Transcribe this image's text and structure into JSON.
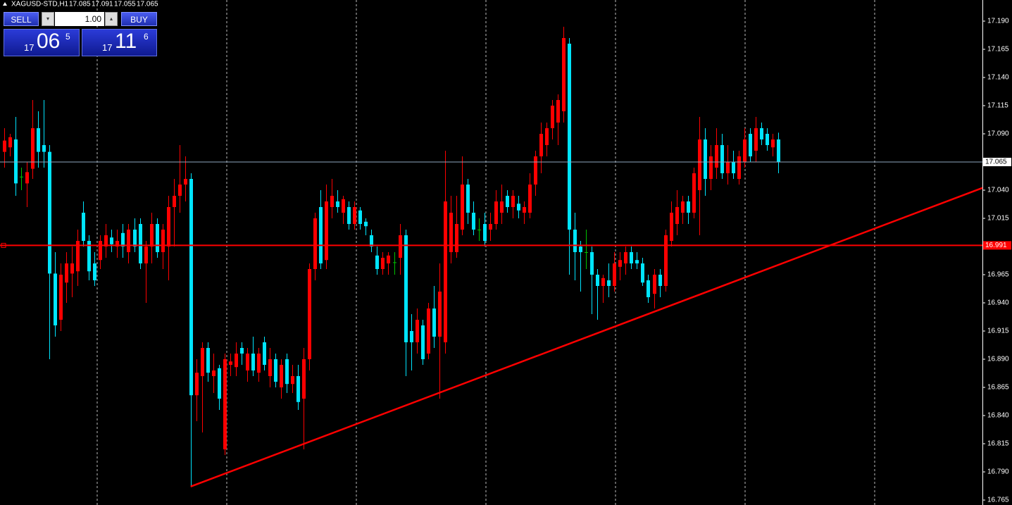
{
  "chart_data": {
    "type": "candlestick",
    "symbol": "XAGUSD-STD,H1",
    "open": [
      17.074,
      17.078,
      17.085,
      17.052,
      17.046,
      17.059,
      17.095,
      17.08,
      17.074,
      16.966,
      16.925,
      16.958,
      16.966,
      16.968,
      17.02,
      16.995,
      16.975,
      16.978,
      16.99,
      16.998,
      16.99,
      17.002,
      16.985,
      17.005,
      17.01,
      16.975,
      16.99,
      17.01,
      16.985,
      16.99,
      17.025,
      17.035,
      17.045,
      17.05,
      16.858,
      16.875,
      16.9,
      16.875,
      16.882,
      16.81,
      16.885,
      16.883,
      16.9,
      16.88,
      16.895,
      16.878,
      16.905,
      16.875,
      16.89,
      16.865,
      16.89,
      16.868,
      16.875,
      16.855,
      16.89,
      16.97,
      17.025,
      16.978,
      17.025,
      17.03,
      17.02,
      17.025,
      17.01,
      17.022,
      17.012,
      17.0,
      16.982,
      16.97,
      16.975,
      16.976,
      16.98,
      17.0,
      16.915,
      16.905,
      16.92,
      16.895,
      16.935,
      16.91,
      16.905,
      16.985,
      16.985,
      17.005,
      17.045,
      17.02,
      17.005,
      17.01,
      17.005,
      17.01,
      17.02,
      17.035,
      17.025,
      17.028,
      17.02,
      17.02,
      17.045,
      17.07,
      17.08,
      17.095,
      17.1,
      17.11,
      17.17,
      17.005,
      16.99,
      16.985,
      16.985,
      16.965,
      16.955,
      16.96,
      16.955,
      16.972,
      16.975,
      16.985,
      16.978,
      16.975,
      16.96,
      16.948,
      16.965,
      16.955,
      16.995,
      17.01,
      17.02,
      17.03,
      17.02,
      17.04,
      17.085,
      17.05,
      17.06,
      17.08,
      17.055,
      17.065,
      17.05,
      17.065,
      17.09,
      17.075,
      17.095,
      17.09,
      17.078,
      17.085
    ],
    "high": [
      17.095,
      17.09,
      17.105,
      17.06,
      17.065,
      17.12,
      17.11,
      17.12,
      17.08,
      16.985,
      16.975,
      16.985,
      16.99,
      17.005,
      17.03,
      17.0,
      16.985,
      17.0,
      17.01,
      17.005,
      17.005,
      17.01,
      17.01,
      17.015,
      17.015,
      16.995,
      17.02,
      17.015,
      17.01,
      17.035,
      17.05,
      17.08,
      17.07,
      17.055,
      16.89,
      16.905,
      16.905,
      16.895,
      16.885,
      16.895,
      16.895,
      16.905,
      16.905,
      16.9,
      16.91,
      16.9,
      16.91,
      16.9,
      16.895,
      16.89,
      16.895,
      16.885,
      16.885,
      16.9,
      16.975,
      17.02,
      17.04,
      17.045,
      17.05,
      17.04,
      17.035,
      17.03,
      17.03,
      17.025,
      17.015,
      17.005,
      16.99,
      16.985,
      16.985,
      16.985,
      17.01,
      17.005,
      16.93,
      16.935,
      16.925,
      16.94,
      16.955,
      16.975,
      17.075,
      17.035,
      17.035,
      17.07,
      17.05,
      17.03,
      17.015,
      17.02,
      17.02,
      17.04,
      17.045,
      17.04,
      17.04,
      17.035,
      17.03,
      17.055,
      17.075,
      17.1,
      17.1,
      17.12,
      17.125,
      17.185,
      17.175,
      17.02,
      16.995,
      17.005,
      16.99,
      16.97,
      16.965,
      16.975,
      16.985,
      16.985,
      16.99,
      16.99,
      16.985,
      16.98,
      16.965,
      16.97,
      16.97,
      17.005,
      17.03,
      17.04,
      17.035,
      17.035,
      17.06,
      17.105,
      17.095,
      17.08,
      17.095,
      17.09,
      17.08,
      17.075,
      17.075,
      17.095,
      17.095,
      17.105,
      17.1,
      17.095,
      17.09,
      17.091
    ],
    "low": [
      17.06,
      17.07,
      17.035,
      17.04,
      17.025,
      17.05,
      17.06,
      17.06,
      16.89,
      16.91,
      16.915,
      16.94,
      16.945,
      16.955,
      16.99,
      16.96,
      16.955,
      16.97,
      16.98,
      16.985,
      16.98,
      16.98,
      16.975,
      16.985,
      16.97,
      16.94,
      16.975,
      16.98,
      16.97,
      16.96,
      16.99,
      17.02,
      17.03,
      16.777,
      16.835,
      16.825,
      16.87,
      16.86,
      16.845,
      16.805,
      16.875,
      16.875,
      16.885,
      16.87,
      16.875,
      16.87,
      16.88,
      16.865,
      16.865,
      16.855,
      16.86,
      16.86,
      16.845,
      16.81,
      16.88,
      16.96,
      16.97,
      16.97,
      17.015,
      17.02,
      17.01,
      17.005,
      17.005,
      17.005,
      17.0,
      16.985,
      16.965,
      16.965,
      16.965,
      16.965,
      16.965,
      16.875,
      16.88,
      16.895,
      16.885,
      16.89,
      16.9,
      16.855,
      16.895,
      16.975,
      16.98,
      17.0,
      17.01,
      17.0,
      16.995,
      16.99,
      16.995,
      17.005,
      17.01,
      17.02,
      17.015,
      17.015,
      17.01,
      17.015,
      17.035,
      17.055,
      17.07,
      17.085,
      17.08,
      17.1,
      16.965,
      16.96,
      16.95,
      16.97,
      16.93,
      16.925,
      16.94,
      16.945,
      16.95,
      16.96,
      16.965,
      16.97,
      16.97,
      16.955,
      16.94,
      16.935,
      16.945,
      16.95,
      16.99,
      17.0,
      17.01,
      17.01,
      17.015,
      17.0,
      17.035,
      17.04,
      17.05,
      17.05,
      17.045,
      17.05,
      17.045,
      17.06,
      17.065,
      17.065,
      17.08,
      17.075,
      17.07,
      17.055
    ],
    "close": [
      17.084,
      17.087,
      17.046,
      17.052,
      17.056,
      17.095,
      17.074,
      17.074,
      16.966,
      16.92,
      16.965,
      16.975,
      16.975,
      16.995,
      16.995,
      16.968,
      16.96,
      16.995,
      17.0,
      16.992,
      16.995,
      16.99,
      17.005,
      16.99,
      16.975,
      16.99,
      17.01,
      16.985,
      17.005,
      17.025,
      17.035,
      17.045,
      17.05,
      16.858,
      16.878,
      16.9,
      16.878,
      16.88,
      16.855,
      16.89,
      16.888,
      16.895,
      16.895,
      16.895,
      16.88,
      16.895,
      16.885,
      16.89,
      16.87,
      16.885,
      16.868,
      16.875,
      16.852,
      16.89,
      16.97,
      17.015,
      16.975,
      17.03,
      17.035,
      17.025,
      17.032,
      17.01,
      17.025,
      17.01,
      17.008,
      16.99,
      16.97,
      16.98,
      16.982,
      16.976,
      17.0,
      16.905,
      16.905,
      16.925,
      16.89,
      16.935,
      16.91,
      16.95,
      17.03,
      17.02,
      17.01,
      17.045,
      17.02,
      17.005,
      17.005,
      16.995,
      17.01,
      17.03,
      17.03,
      17.025,
      17.035,
      17.022,
      17.025,
      17.045,
      17.07,
      17.09,
      17.095,
      17.115,
      17.12,
      17.175,
      17.005,
      16.985,
      16.985,
      16.985,
      16.965,
      16.955,
      16.962,
      16.955,
      16.975,
      16.978,
      16.985,
      16.975,
      16.975,
      16.958,
      16.945,
      16.965,
      16.955,
      17.0,
      17.02,
      17.025,
      17.03,
      17.02,
      17.055,
      17.085,
      17.05,
      17.07,
      17.08,
      17.055,
      17.065,
      17.055,
      17.07,
      17.085,
      17.07,
      17.095,
      17.085,
      17.08,
      17.085,
      17.065
    ],
    "up_color": "#ff0000",
    "down_color": "#00e5ff",
    "doji_color": "#00c000",
    "level": 16.991,
    "level_color": "#ff0000",
    "trendline": [
      16.777,
      17.042
    ],
    "ylim": [
      16.760625,
      17.20875
    ],
    "yticks": [
      16.765,
      {
        "value": 16.79,
        "label": "16.790"
      },
      16.815,
      {
        "value": 16.84,
        "label": "16.840"
      },
      16.865,
      {
        "value": 16.89,
        "label": "16.890"
      },
      16.915,
      {
        "value": 16.94,
        "label": "16.940"
      },
      16.965,
      17.015,
      {
        "value": 17.04,
        "label": "17.040"
      },
      {
        "value": 17.09,
        "label": "17.090"
      },
      17.115,
      {
        "value": 17.14,
        "label": "17.140"
      },
      17.165,
      {
        "value": 17.19,
        "label": "17.190"
      }
    ]
  },
  "trade_panel": {
    "sell": "SELL",
    "lots": "1.00",
    "buy": "BUY",
    "bid": {
      "big": "17",
      "mid": "06",
      "pip": "5"
    },
    "ask": {
      "big": "17",
      "mid": "11",
      "pip": "6"
    }
  }
}
